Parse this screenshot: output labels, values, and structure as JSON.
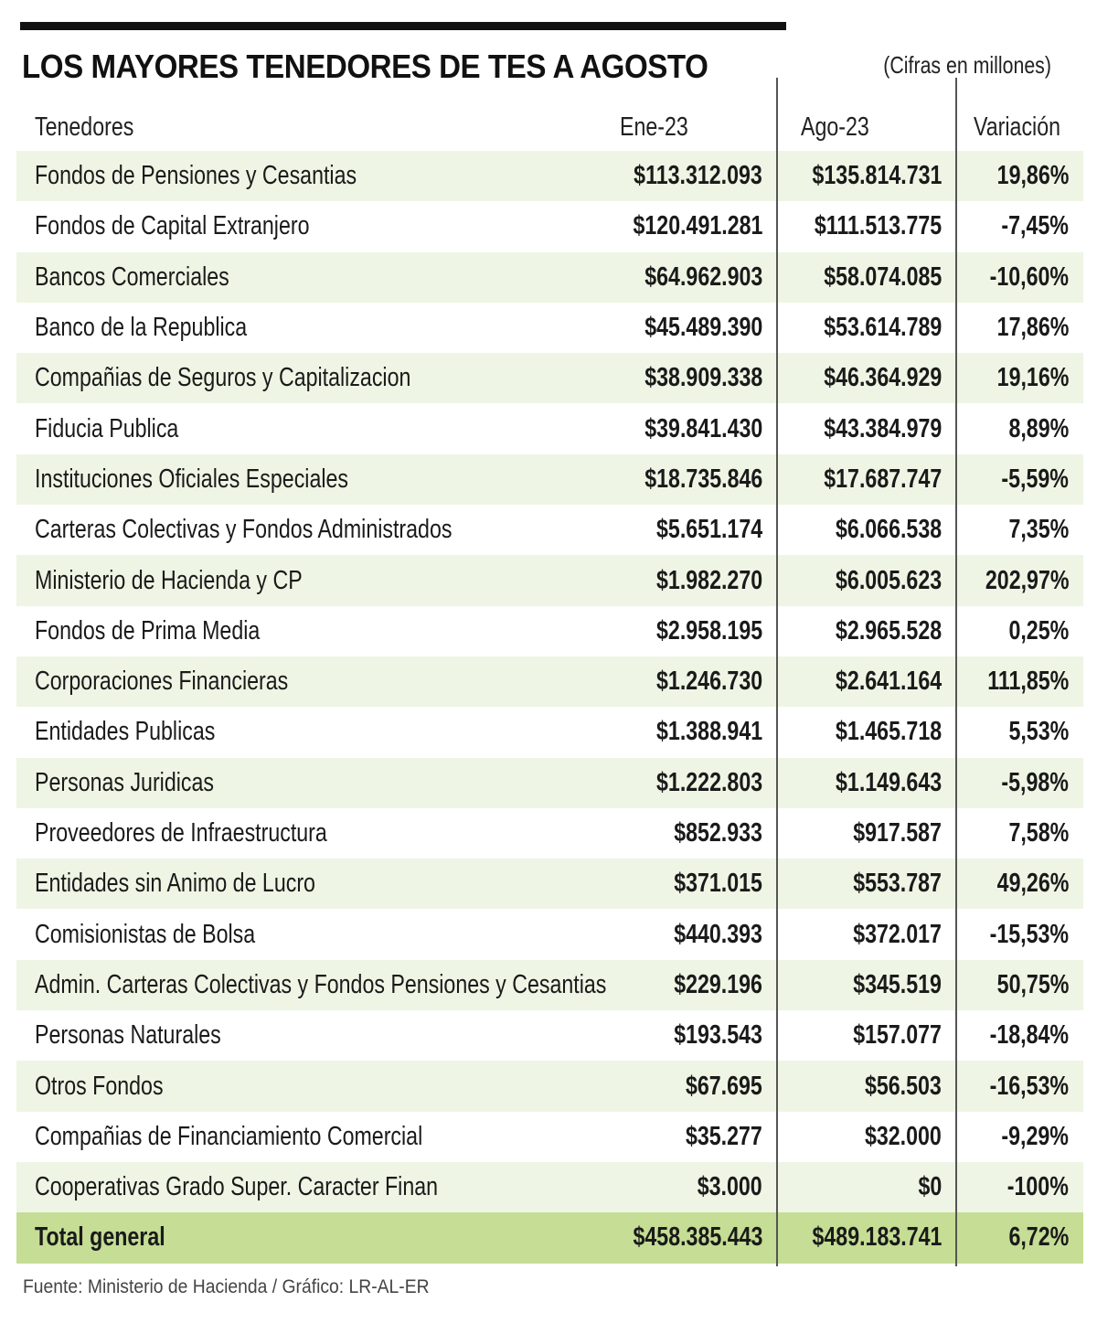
{
  "title": "LOS MAYORES TENEDORES DE TES A AGOSTO",
  "subtitle": "(Cifras en millones)",
  "source": "Fuente: Ministerio de Hacienda / Gráfico: LR-AL-ER",
  "colors": {
    "row_shade": "#eef5e4",
    "total_shade": "#c5dd94",
    "rule": "#111111"
  },
  "chart_data": {
    "type": "table",
    "title": "LOS MAYORES TENEDORES DE TES A AGOSTO",
    "subtitle": "(Cifras en millones)",
    "columns": [
      "Tenedores",
      "Ene-23",
      "Ago-23",
      "Variación"
    ],
    "rows": [
      {
        "name": "Fondos de Pensiones y Cesantias",
        "ene": "$113.312.093",
        "ago": "$135.814.731",
        "var": "19,86%"
      },
      {
        "name": "Fondos de Capital Extranjero",
        "ene": "$120.491.281",
        "ago": "$111.513.775",
        "var": "-7,45%"
      },
      {
        "name": "Bancos Comerciales",
        "ene": "$64.962.903",
        "ago": "$58.074.085",
        "var": "-10,60%"
      },
      {
        "name": "Banco de la Republica",
        "ene": "$45.489.390",
        "ago": "$53.614.789",
        "var": "17,86%"
      },
      {
        "name": "Compañias de Seguros y Capitalizacion",
        "ene": "$38.909.338",
        "ago": "$46.364.929",
        "var": "19,16%"
      },
      {
        "name": "Fiducia Publica",
        "ene": "$39.841.430",
        "ago": "$43.384.979",
        "var": "8,89%"
      },
      {
        "name": "Instituciones Oficiales Especiales",
        "ene": "$18.735.846",
        "ago": "$17.687.747",
        "var": "-5,59%"
      },
      {
        "name": "Carteras Colectivas y Fondos Administrados",
        "ene": "$5.651.174",
        "ago": "$6.066.538",
        "var": "7,35%"
      },
      {
        "name": "Ministerio de Hacienda y CP",
        "ene": "$1.982.270",
        "ago": "$6.005.623",
        "var": "202,97%"
      },
      {
        "name": "Fondos de Prima Media",
        "ene": "$2.958.195",
        "ago": "$2.965.528",
        "var": "0,25%"
      },
      {
        "name": "Corporaciones Financieras",
        "ene": "$1.246.730",
        "ago": "$2.641.164",
        "var": "111,85%"
      },
      {
        "name": "Entidades Publicas",
        "ene": "$1.388.941",
        "ago": "$1.465.718",
        "var": "5,53%"
      },
      {
        "name": "Personas Juridicas",
        "ene": "$1.222.803",
        "ago": "$1.149.643",
        "var": "-5,98%"
      },
      {
        "name": "Proveedores de Infraestructura",
        "ene": "$852.933",
        "ago": "$917.587",
        "var": "7,58%"
      },
      {
        "name": "Entidades sin Animo de Lucro",
        "ene": "$371.015",
        "ago": "$553.787",
        "var": "49,26%"
      },
      {
        "name": "Comisionistas de Bolsa",
        "ene": "$440.393",
        "ago": "$372.017",
        "var": "-15,53%"
      },
      {
        "name": "Admin. Carteras Colectivas y Fondos Pensiones y Cesantias",
        "ene": "$229.196",
        "ago": "$345.519",
        "var": "50,75%"
      },
      {
        "name": "Personas Naturales",
        "ene": "$193.543",
        "ago": "$157.077",
        "var": "-18,84%"
      },
      {
        "name": "Otros Fondos",
        "ene": "$67.695",
        "ago": "$56.503",
        "var": "-16,53%"
      },
      {
        "name": "Compañias de Financiamiento Comercial",
        "ene": "$35.277",
        "ago": "$32.000",
        "var": "-9,29%"
      },
      {
        "name": "Cooperativas Grado Super. Caracter Finan",
        "ene": "$3.000",
        "ago": "$0",
        "var": "-100%"
      }
    ],
    "total": {
      "name": "Total general",
      "ene": "$458.385.443",
      "ago": "$489.183.741",
      "var": "6,72%"
    }
  }
}
